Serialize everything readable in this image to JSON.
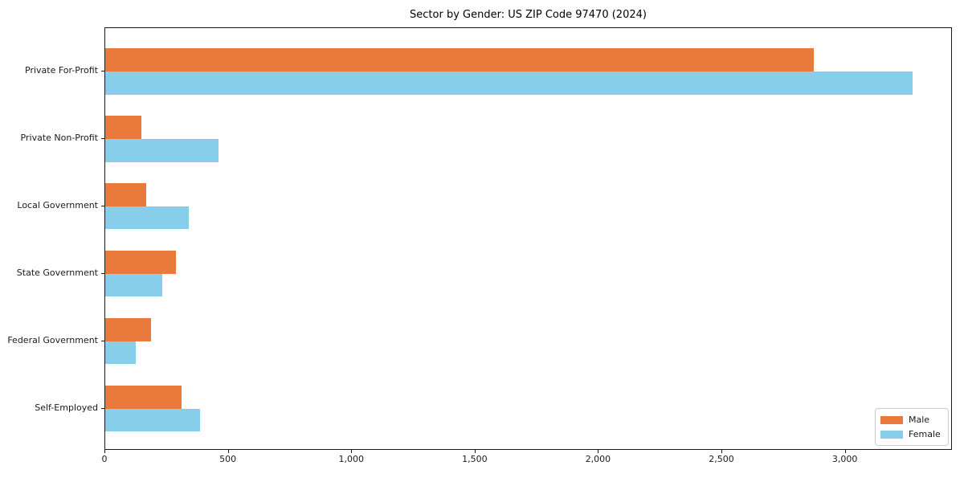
{
  "chart_data": {
    "type": "bar",
    "orientation": "horizontal",
    "title": "Sector by Gender: US ZIP Code 97470 (2024)",
    "categories": [
      "Private For-Profit",
      "Private Non-Profit",
      "Local Government",
      "State Government",
      "Federal Government",
      "Self-Employed"
    ],
    "series": [
      {
        "name": "Male",
        "color": "#e97a3c",
        "values": [
          2870,
          145,
          165,
          285,
          185,
          310
        ]
      },
      {
        "name": "Female",
        "color": "#87ceeb",
        "values": [
          3270,
          460,
          340,
          230,
          125,
          385
        ]
      }
    ],
    "xlabel": "",
    "ylabel": "",
    "xlim": [
      0,
      3434
    ],
    "xticks": [
      0,
      500,
      1000,
      1500,
      2000,
      2500,
      3000
    ],
    "xtick_labels": [
      "0",
      "500",
      "1,000",
      "1,500",
      "2,000",
      "2,500",
      "3,000"
    ],
    "grid": false,
    "legend": {
      "position": "lower right"
    }
  }
}
